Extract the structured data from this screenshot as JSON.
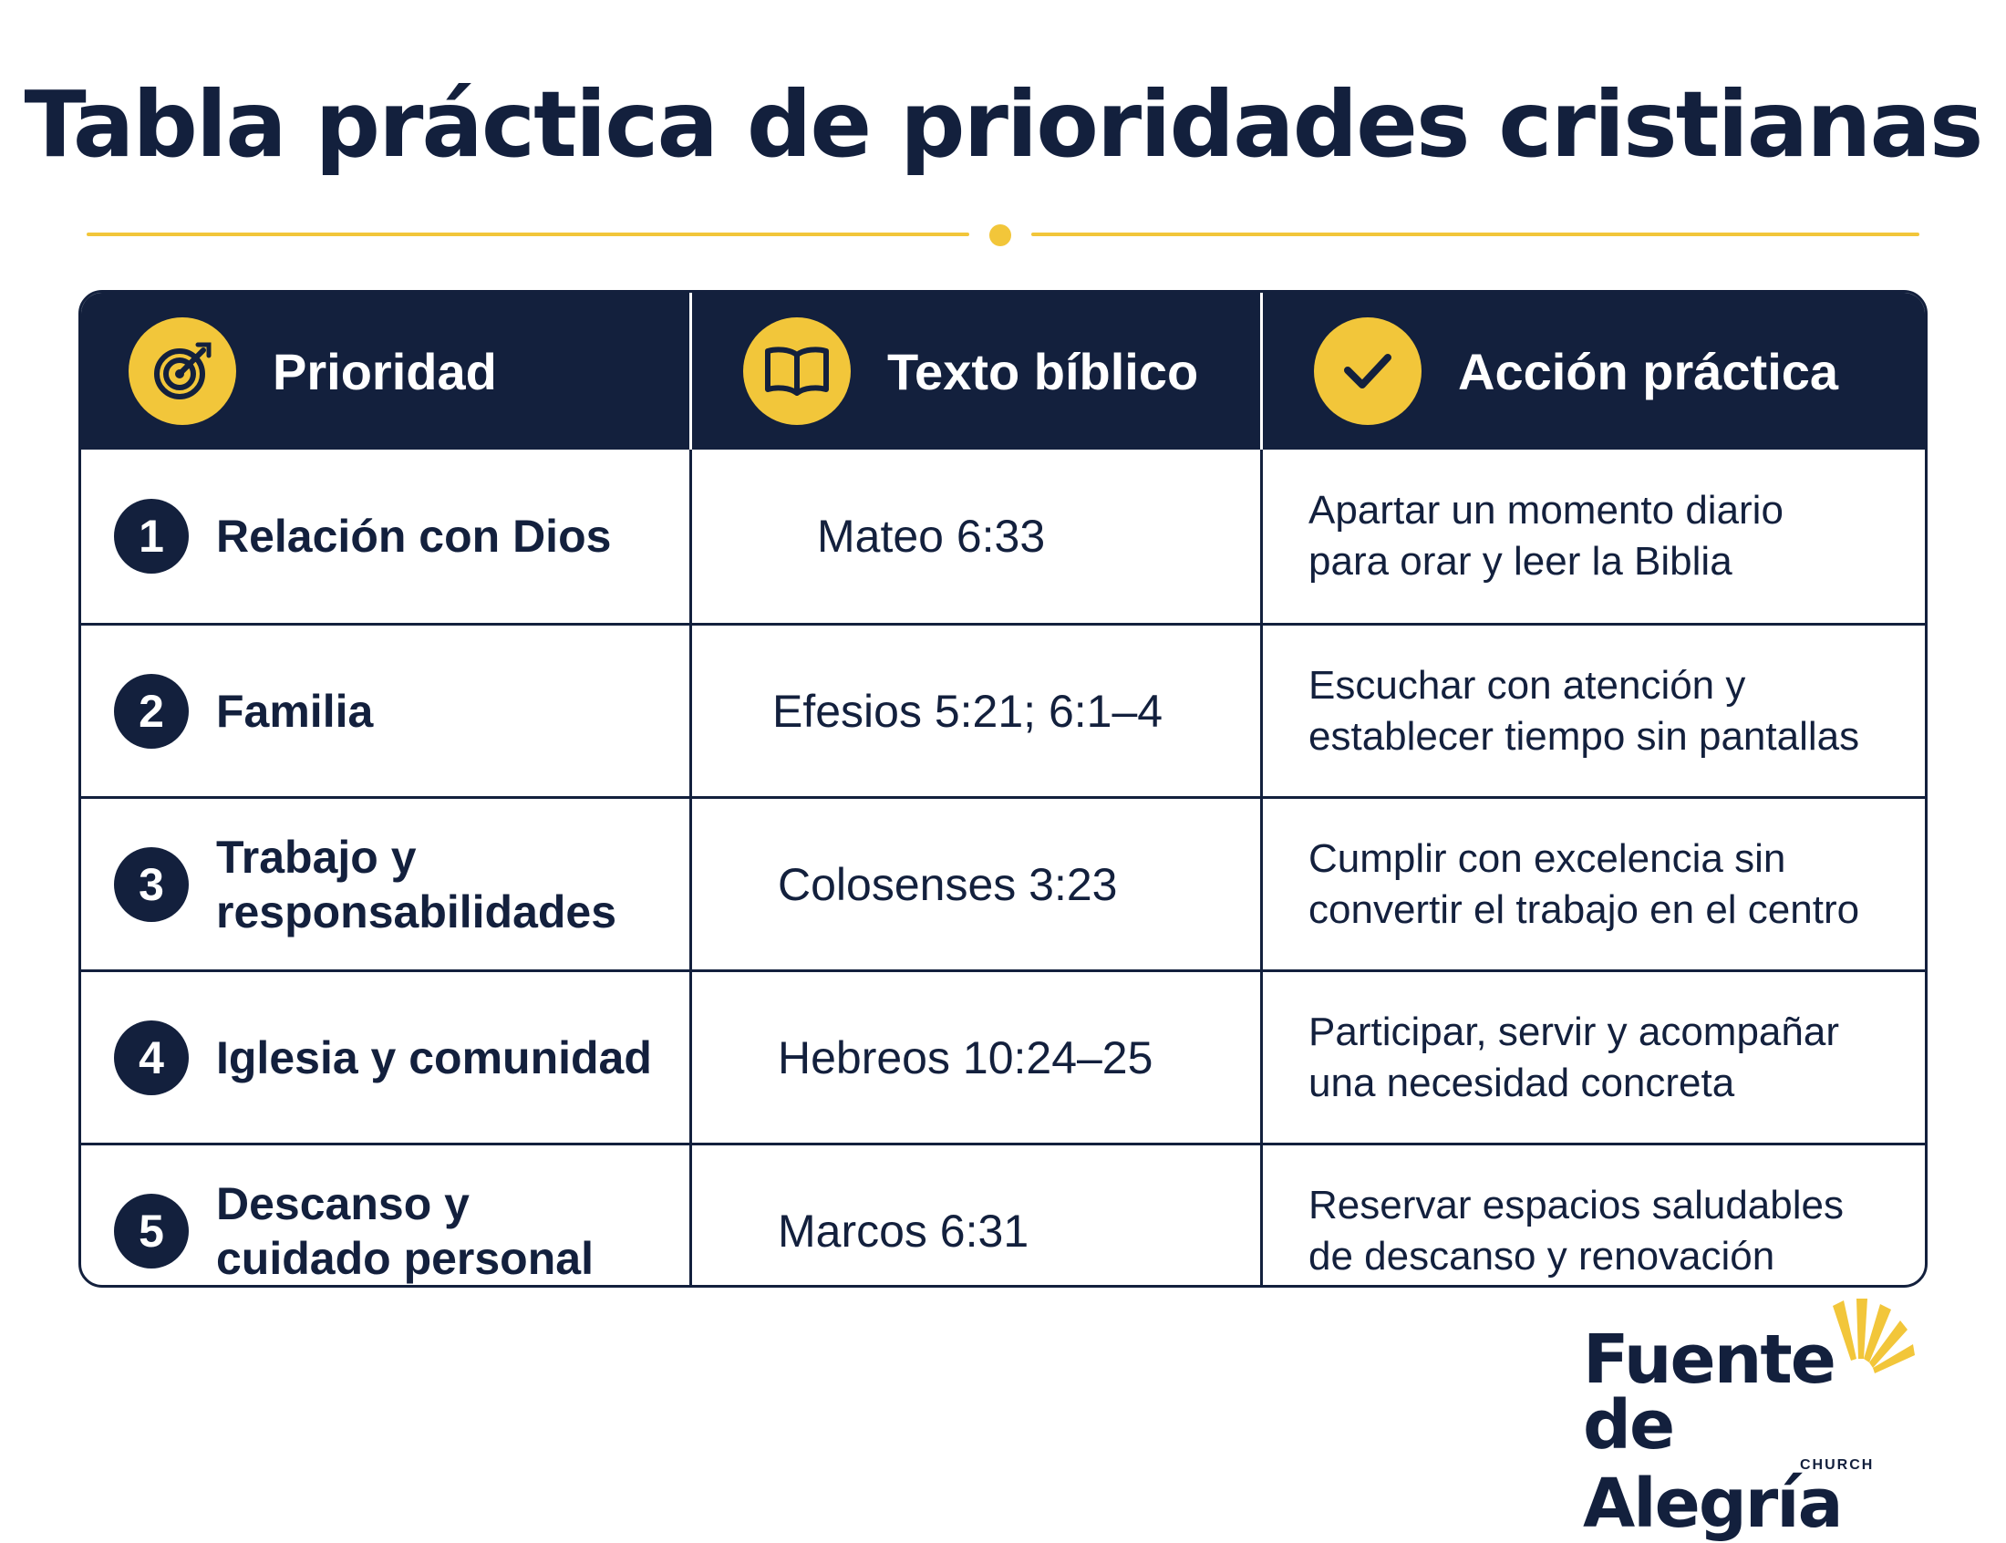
{
  "title": "Tabla práctica de prioridades cristianas",
  "colors": {
    "navy": "#13203d",
    "gold": "#f2c63a",
    "white": "#ffffff"
  },
  "header": [
    {
      "label": "Prioridad",
      "icon": "target-icon"
    },
    {
      "label": "Texto bíblico",
      "icon": "open-book-icon"
    },
    {
      "label": "Acción práctica",
      "icon": "checkmark-icon"
    }
  ],
  "rows": [
    {
      "num": "1",
      "priority": "Relación con Dios",
      "text": "Mateo 6:33",
      "action_line1": "Apartar un momento diario",
      "action_line2": "para orar y leer la Biblia"
    },
    {
      "num": "2",
      "priority": "Familia",
      "text": "Efesios 5:21; 6:1–4",
      "action_line1": "Escuchar con atención y",
      "action_line2": "establecer tiempo sin pantallas"
    },
    {
      "num": "3",
      "priority": "Trabajo y responsabilidades",
      "text": "Colosenses 3:23",
      "action_line1": "Cumplir con excelencia sin",
      "action_line2": "convertir el trabajo en el centro"
    },
    {
      "num": "4",
      "priority": "Iglesia y comunidad",
      "text": "Hebreos 10:24–25",
      "action_line1": "Participar, servir y acompañar",
      "action_line2": "una necesidad concreta"
    },
    {
      "num": "5",
      "priority": "Descanso y cuidado personal",
      "text": "Marcos 6:31",
      "action_line1": "Reservar espacios saludables",
      "action_line2": "de descanso y renovación"
    }
  ],
  "logo": {
    "line1": "Fuente",
    "line2": "de Alegría",
    "line3": "CHURCH",
    "icon": "sunburst-icon"
  }
}
